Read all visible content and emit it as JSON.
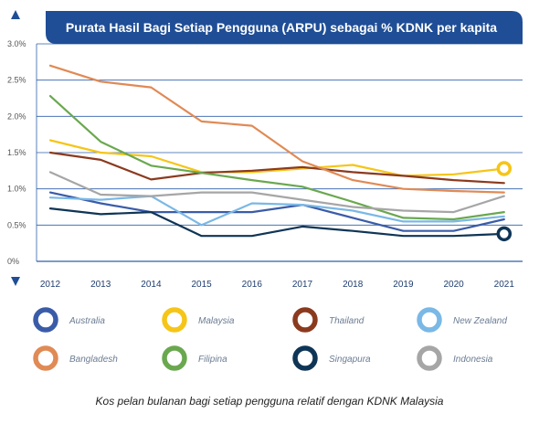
{
  "chart_data": {
    "type": "line",
    "title": "Purata Hasil Bagi Setiap Pengguna (ARPU) sebagai % KDNK per kapita",
    "categories": [
      "2012",
      "2013",
      "2014",
      "2015",
      "2016",
      "2017",
      "2018",
      "2019",
      "2020",
      "2021"
    ],
    "ylim": [
      0,
      3.0
    ],
    "y_ticks": [
      0,
      0.5,
      1.0,
      1.5,
      2.0,
      2.5,
      3.0
    ],
    "y_tick_labels": [
      "0%",
      "0.5%",
      "1.0%",
      "1.5%",
      "2.0%",
      "2.5%",
      "3.0%"
    ],
    "grid": true,
    "legend_position": "bottom",
    "series": [
      {
        "name": "Australia",
        "color": "#3a5ca8",
        "values": [
          0.95,
          0.8,
          0.68,
          0.68,
          0.68,
          0.78,
          0.6,
          0.42,
          0.42,
          0.58
        ]
      },
      {
        "name": "Malaysia",
        "color": "#f5c518",
        "values": [
          1.67,
          1.5,
          1.45,
          1.23,
          1.23,
          1.28,
          1.33,
          1.18,
          1.2,
          1.28
        ]
      },
      {
        "name": "Thailand",
        "color": "#8b3a1e",
        "values": [
          1.5,
          1.4,
          1.13,
          1.22,
          1.25,
          1.3,
          1.23,
          1.18,
          1.12,
          1.08
        ]
      },
      {
        "name": "New Zealand",
        "color": "#7ab8e6",
        "values": [
          0.88,
          0.85,
          0.9,
          0.5,
          0.8,
          0.78,
          0.7,
          0.55,
          0.55,
          0.62
        ]
      },
      {
        "name": "Bangladesh",
        "color": "#e08a55",
        "values": [
          2.7,
          2.48,
          2.4,
          1.93,
          1.87,
          1.38,
          1.12,
          1.0,
          0.97,
          0.95
        ]
      },
      {
        "name": "Filipina",
        "color": "#6aa84f",
        "values": [
          2.28,
          1.65,
          1.32,
          1.22,
          1.12,
          1.03,
          0.82,
          0.6,
          0.58,
          0.68
        ]
      },
      {
        "name": "Singapura",
        "color": "#0f3556",
        "values": [
          0.73,
          0.65,
          0.68,
          0.35,
          0.35,
          0.48,
          0.42,
          0.35,
          0.35,
          0.38
        ]
      },
      {
        "name": "Indonesia",
        "color": "#a6a6a6",
        "values": [
          1.23,
          0.92,
          0.9,
          0.95,
          0.95,
          0.85,
          0.75,
          0.7,
          0.68,
          0.9
        ]
      }
    ],
    "highlighted_end_points": [
      "Malaysia",
      "Singapura"
    ]
  },
  "caption": "Kos pelan bulanan bagi setiap pengguna relatif dengan KDNK Malaysia",
  "colors": {
    "accent": "#1f4e96",
    "grid": "#2f5fa8"
  }
}
